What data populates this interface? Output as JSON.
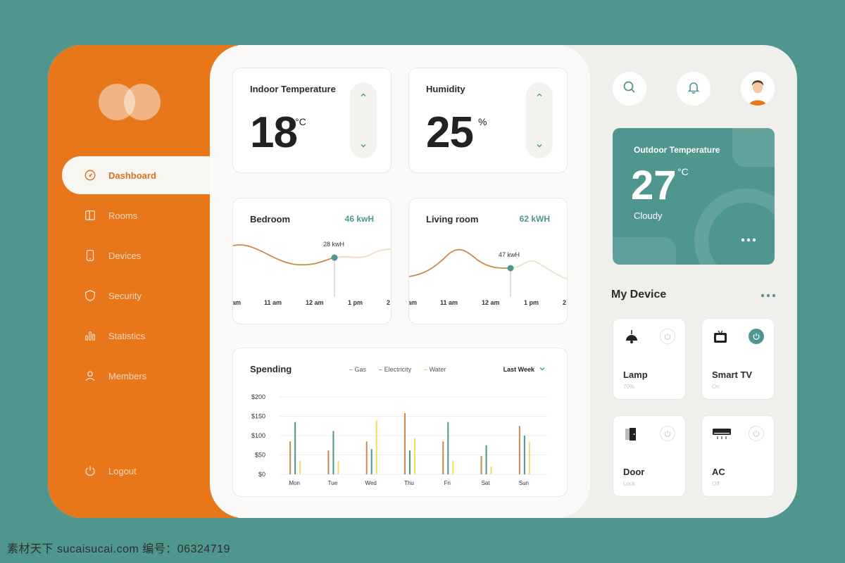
{
  "sidebar": {
    "items": [
      {
        "label": "Dashboard",
        "icon": "gauge-icon"
      },
      {
        "label": "Rooms",
        "icon": "door-panel-icon"
      },
      {
        "label": "Devices",
        "icon": "phone-icon"
      },
      {
        "label": "Security",
        "icon": "shield-icon"
      },
      {
        "label": "Statistics",
        "icon": "bar-chart-icon"
      },
      {
        "label": "Members",
        "icon": "user-icon"
      }
    ],
    "logout": "Logout"
  },
  "indoor": {
    "title": "Indoor Temperature",
    "value": "18",
    "unit": "°C"
  },
  "humidity": {
    "title": "Humidity",
    "value": "25",
    "unit": "%"
  },
  "bedroom": {
    "title": "Bedroom",
    "total": "46 kwH",
    "marker": "28 kwH",
    "ticks": [
      "am",
      "11 am",
      "12 am",
      "1 pm",
      "2"
    ]
  },
  "living": {
    "title": "Living room",
    "total": "62 kWH",
    "marker": "47 kwH",
    "ticks": [
      "am",
      "11 am",
      "12 am",
      "1 pm",
      "2"
    ]
  },
  "spending": {
    "title": "Spending",
    "range_label": "Last Week",
    "legend": [
      "Gas",
      "Electricity",
      "Water"
    ]
  },
  "chart_data": {
    "type": "bar",
    "title": "Spending",
    "categories": [
      "Mon",
      "Tue",
      "Wed",
      "Thu",
      "Fri",
      "Sat",
      "Sun"
    ],
    "ytick_labels": [
      "$200",
      "$150",
      "$100",
      "$50",
      "$0"
    ],
    "ylim": [
      0,
      200
    ],
    "series": [
      {
        "name": "Gas",
        "color": "#c78a4d",
        "values": [
          85,
          62,
          85,
          158,
          85,
          47,
          125
        ]
      },
      {
        "name": "Electricity",
        "color": "#4f968f",
        "values": [
          135,
          112,
          65,
          62,
          135,
          75,
          100
        ]
      },
      {
        "name": "Water",
        "color": "#f2de61",
        "values": [
          35,
          35,
          140,
          93,
          35,
          20,
          85
        ]
      }
    ],
    "legend_position": "top",
    "grid": true
  },
  "colors": {
    "accent": "#e8771c",
    "teal": "#4f968f"
  },
  "outdoor": {
    "title": "Outdoor Temperature",
    "value": "27",
    "unit": "°C",
    "condition": "Cloudy"
  },
  "my_device": {
    "title": "My Device",
    "devices": [
      {
        "name": "Lamp",
        "state": "70%",
        "icon": "lamp-icon"
      },
      {
        "name": "Smart TV",
        "state": "On",
        "icon": "tv-icon"
      },
      {
        "name": "Door",
        "state": "Lock",
        "icon": "door-icon"
      },
      {
        "name": "AC",
        "state": "Off",
        "icon": "ac-icon"
      }
    ]
  },
  "watermark": "素材天下 sucaisucai.com  编号：06324719"
}
